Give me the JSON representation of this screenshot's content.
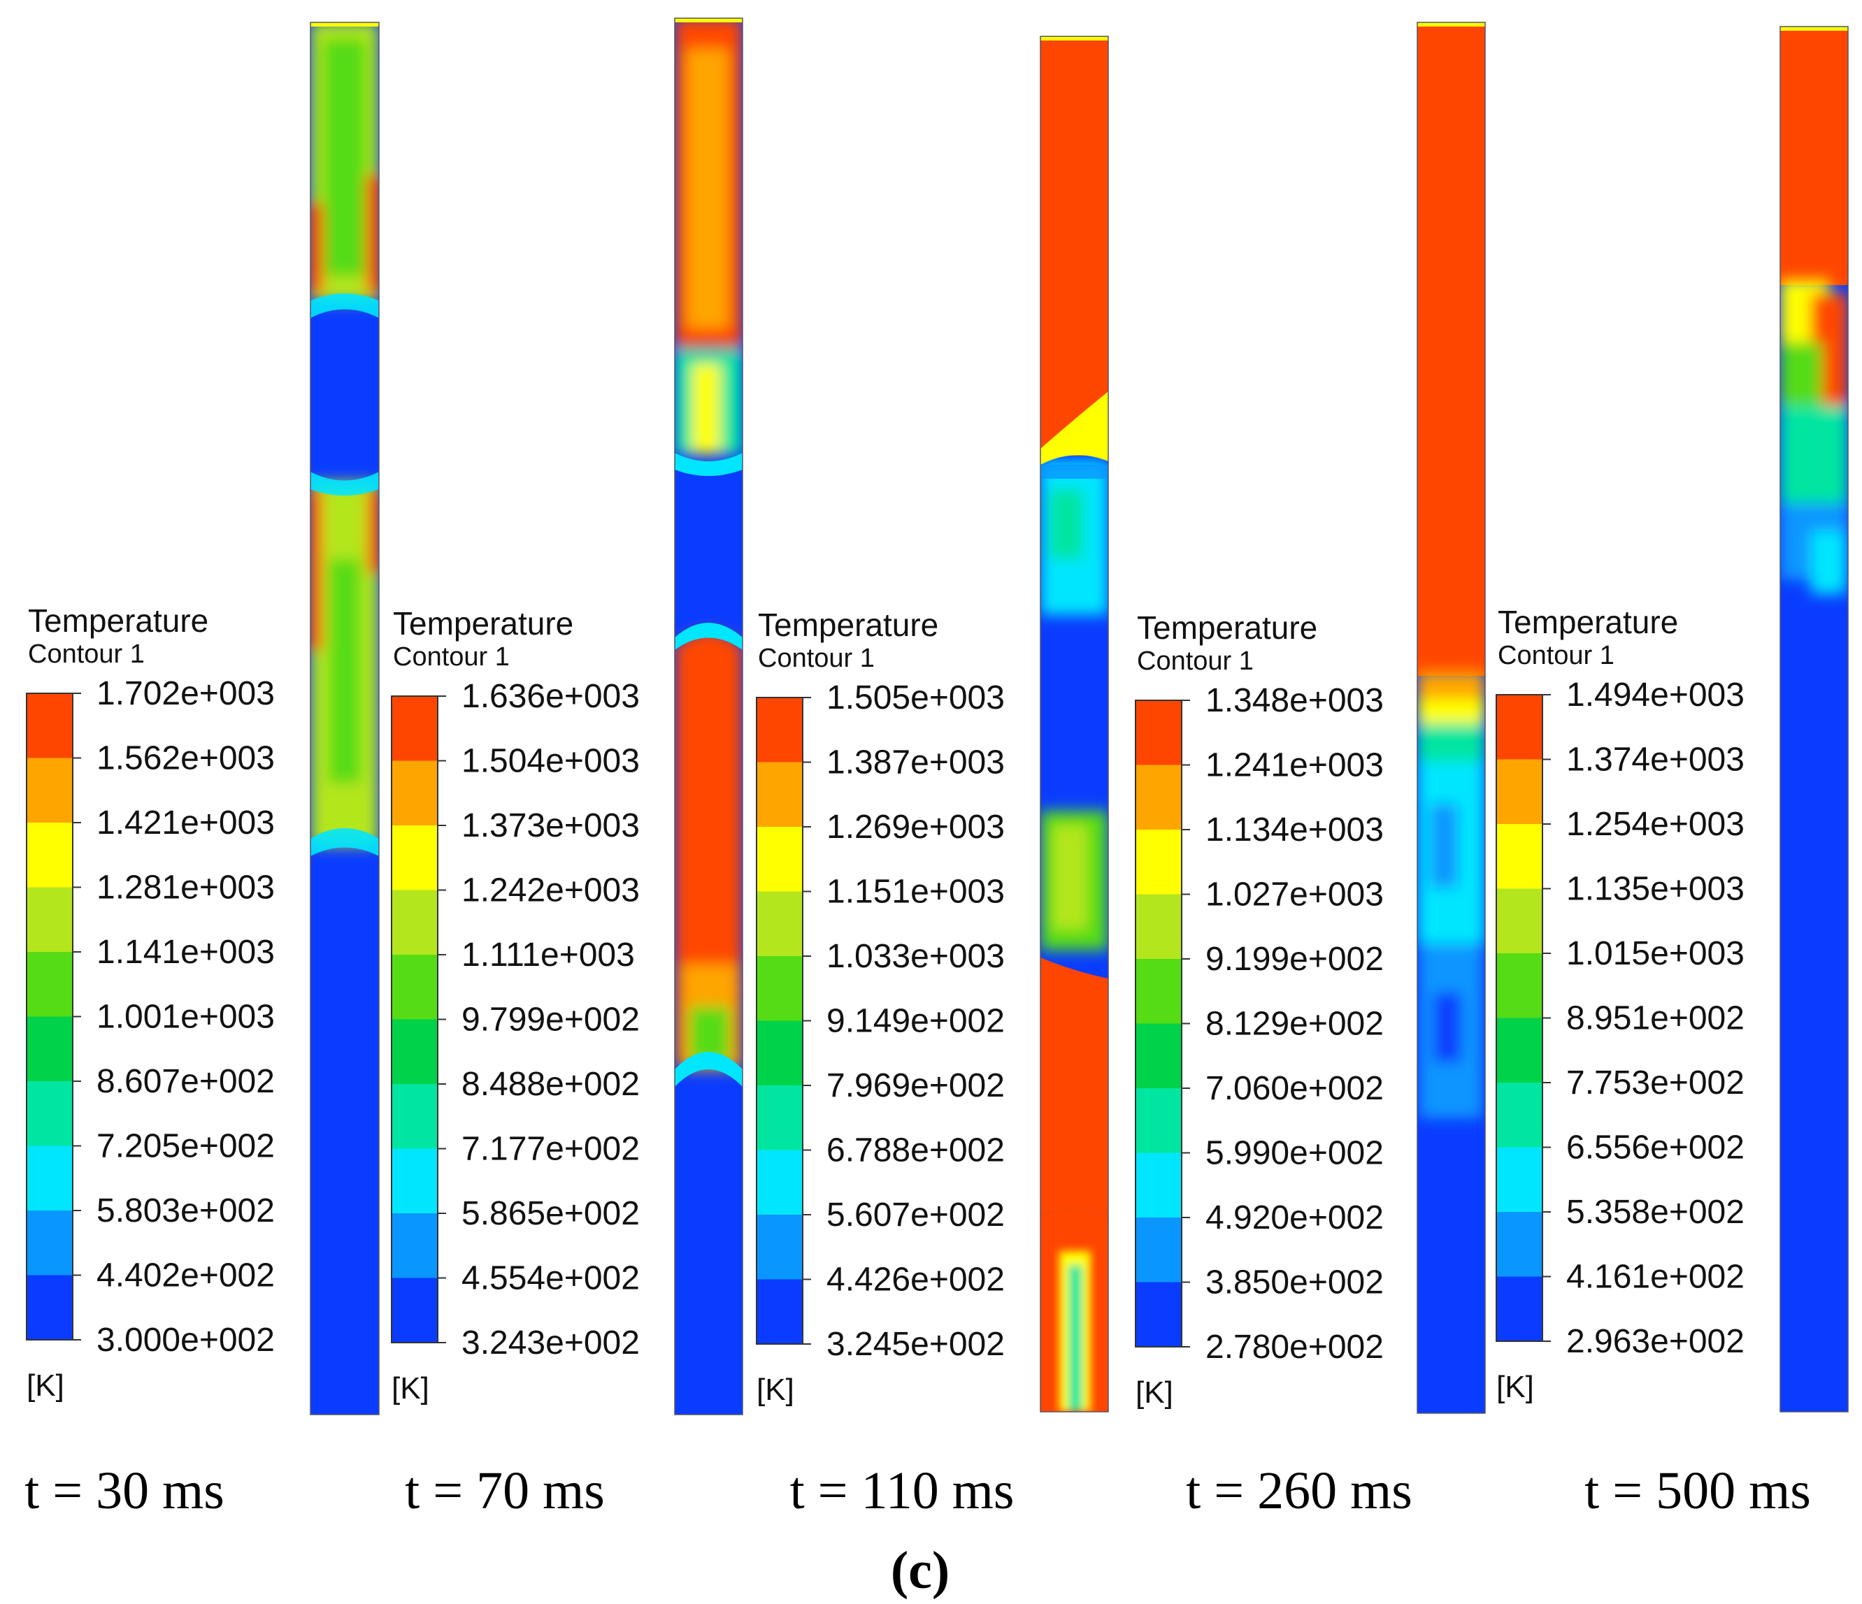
{
  "legend_title": "Temperature",
  "legend_subtitle": "Contour 1",
  "unit": "[K]",
  "colors": {
    "scale": [
      "#0a3cff",
      "#0a96ff",
      "#00e6ff",
      "#00e6a0",
      "#00d24a",
      "#55dc14",
      "#b4e61e",
      "#ffff00",
      "#ffa500",
      "#ff4600"
    ]
  },
  "panels": [
    {
      "time_label": "t = 30 ms",
      "levels": [
        "1.702e+003",
        "1.562e+003",
        "1.421e+003",
        "1.281e+003",
        "1.141e+003",
        "1.001e+003",
        "8.607e+002",
        "7.205e+002",
        "5.803e+002",
        "4.402e+002",
        "3.000e+002"
      ]
    },
    {
      "time_label": "t = 70 ms",
      "levels": [
        "1.636e+003",
        "1.504e+003",
        "1.373e+003",
        "1.242e+003",
        "1.111e+003",
        "9.799e+002",
        "8.488e+002",
        "7.177e+002",
        "5.865e+002",
        "4.554e+002",
        "3.243e+002"
      ]
    },
    {
      "time_label": "t = 110 ms",
      "levels": [
        "1.505e+003",
        "1.387e+003",
        "1.269e+003",
        "1.151e+003",
        "1.033e+003",
        "9.149e+002",
        "7.969e+002",
        "6.788e+002",
        "5.607e+002",
        "4.426e+002",
        "3.245e+002"
      ]
    },
    {
      "time_label": "t = 260 ms",
      "levels": [
        "1.348e+003",
        "1.241e+003",
        "1.134e+003",
        "1.027e+003",
        "9.199e+002",
        "8.129e+002",
        "7.060e+002",
        "5.990e+002",
        "4.920e+002",
        "3.850e+002",
        "2.780e+002"
      ]
    },
    {
      "time_label": "t = 500 ms",
      "levels": [
        "1.494e+003",
        "1.374e+003",
        "1.254e+003",
        "1.135e+003",
        "1.015e+003",
        "8.951e+002",
        "7.753e+002",
        "6.556e+002",
        "5.358e+002",
        "4.161e+002",
        "2.963e+002"
      ]
    }
  ],
  "figure_label": "(c)"
}
